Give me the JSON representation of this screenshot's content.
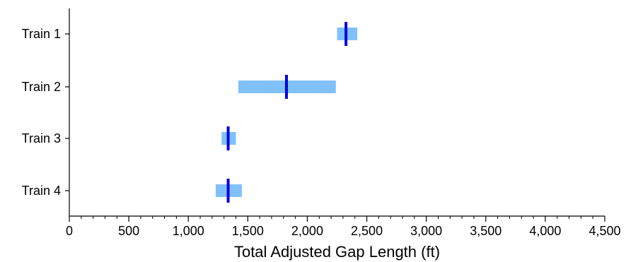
{
  "chart_data": {
    "type": "range-bar",
    "xlabel": "Total Adjusted Gap Length (ft)",
    "ylabel": "",
    "xlim": [
      0,
      4500
    ],
    "x_ticks": [
      0,
      500,
      1000,
      1500,
      2000,
      2500,
      3000,
      3500,
      4000,
      4500
    ],
    "x_tick_labels": [
      "0",
      "500",
      "1,000",
      "1,500",
      "2,000",
      "2,500",
      "3,000",
      "3,500",
      "4,000",
      "4,500"
    ],
    "minor_tick_step": 100,
    "grid": false,
    "categories": [
      "Train 1",
      "Train 2",
      "Train 3",
      "Train 4"
    ],
    "ranges": [
      [
        2250,
        2420
      ],
      [
        1420,
        2240
      ],
      [
        1280,
        1400
      ],
      [
        1230,
        1450
      ]
    ],
    "markers": [
      2325,
      1825,
      1335,
      1335
    ],
    "colors": {
      "range": "#80c1fb",
      "marker": "#0000e0",
      "axis": "#000000"
    }
  }
}
